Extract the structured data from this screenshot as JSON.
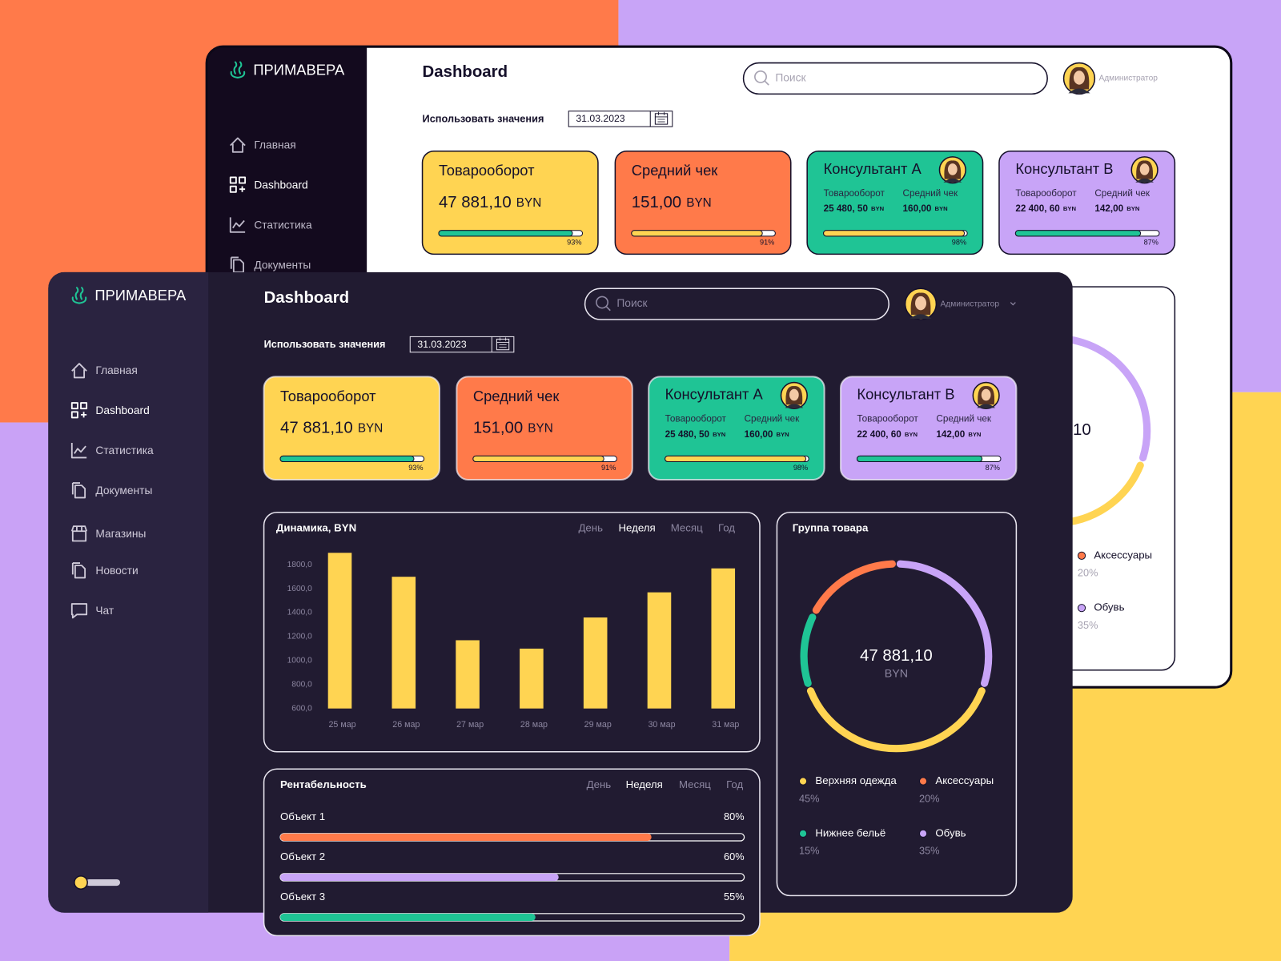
{
  "brand": "ПРИМАВЕРА",
  "nav": [
    "Главная",
    "Dashboard",
    "Статистика",
    "Документы",
    "Магазины",
    "Новости",
    "Чат"
  ],
  "header": {
    "title": "Dashboard",
    "search_placeholder": "Поиск",
    "user": "Администратор"
  },
  "date_filter": {
    "label": "Использовать значения",
    "date": "31.03.2023"
  },
  "cards": [
    {
      "title": "Товарооборот",
      "value": "47 881,10",
      "unit": "BYN",
      "color": "#ffd452",
      "bar_color": "#1fc495",
      "progress": 93,
      "progress_label": "93%"
    },
    {
      "title": "Средний чек",
      "value": "151,00",
      "unit": "BYN",
      "color": "#ff7a4a",
      "bar_color": "#ffd452",
      "progress": 91,
      "progress_label": "91%"
    },
    {
      "title": "Консультант А",
      "color": "#1fc495",
      "bar_color": "#ffd452",
      "progress": 98,
      "progress_label": "98%",
      "stats": [
        {
          "label": "Товарооборот",
          "value": "25 480, 50",
          "unit": "BYN"
        },
        {
          "label": "Средний чек",
          "value": "160,00",
          "unit": "BYN"
        }
      ]
    },
    {
      "title": "Консультант В",
      "color": "#c8a4f7",
      "bar_color": "#1fc495",
      "progress": 87,
      "progress_label": "87%",
      "stats": [
        {
          "label": "Товарооборот",
          "value": "22 400, 60",
          "unit": "BYN"
        },
        {
          "label": "Средний чек",
          "value": "142,00",
          "unit": "BYN"
        }
      ]
    }
  ],
  "chart_data": [
    {
      "type": "bar",
      "title": "Динамика, BYN",
      "tabs": [
        "День",
        "Неделя",
        "Месяц",
        "Год"
      ],
      "active_tab": 1,
      "categories": [
        "25 мар",
        "26 мар",
        "27 мар",
        "28 мар",
        "29 мар",
        "30 мар",
        "31 мар"
      ],
      "values": [
        1900,
        1700,
        1170,
        1100,
        1360,
        1570,
        1770
      ],
      "color": "#ffd452",
      "ylim": [
        600,
        1900
      ],
      "yticks": [
        {
          "value": 600,
          "label": "600,0"
        },
        {
          "value": 800,
          "label": "800,0"
        },
        {
          "value": 1000,
          "label": "1000,0"
        },
        {
          "value": 1200,
          "label": "1200,0"
        },
        {
          "value": 1400,
          "label": "1400,0"
        },
        {
          "value": 1600,
          "label": "1600,0"
        },
        {
          "value": 1800,
          "label": "1800,0"
        }
      ],
      "grid": false
    },
    {
      "type": "progress",
      "title": "Рентабельность",
      "tabs": [
        "День",
        "Неделя",
        "Месяц",
        "Год"
      ],
      "active_tab": 1,
      "categories": [
        "Объект 1",
        "Объект 2",
        "Объект 3"
      ],
      "values": [
        80,
        60,
        55
      ],
      "value_labels": [
        "80%",
        "60%",
        "55%"
      ],
      "colors": [
        "#ff7a4a",
        "#c8a4f7",
        "#1fc495"
      ],
      "xlim": [
        0,
        100
      ]
    },
    {
      "type": "donut",
      "title": "Группа товара",
      "center_value": "47 881,10",
      "center_unit": "BYN",
      "categories": [
        "Верхняя одежда",
        "Нижнее бельё",
        "Аксессуары",
        "Обувь"
      ],
      "values": [
        45,
        15,
        20,
        35
      ],
      "value_labels": [
        "45%",
        "15%",
        "20%",
        "35%"
      ],
      "colors": [
        "#ffd452",
        "#1fc495",
        "#ff7a4a",
        "#c8a4f7"
      ]
    }
  ]
}
